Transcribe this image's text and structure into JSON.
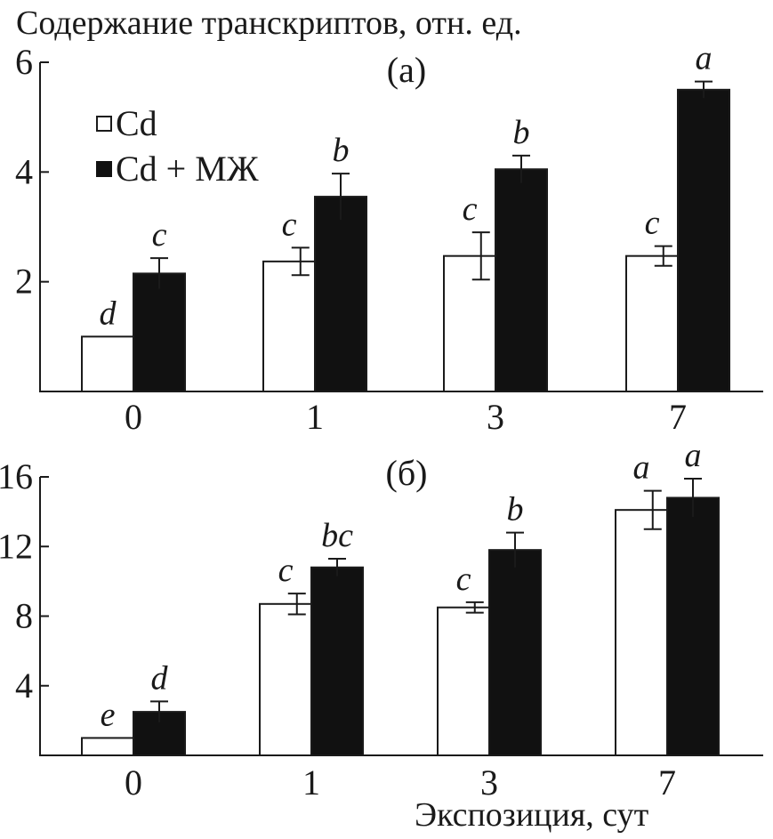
{
  "chart_data": {
    "type": "bar",
    "ylabel": "Содержание транскриптов, отн. ед.",
    "xlabel": "Экспозиция, сут",
    "categories": [
      "0",
      "1",
      "3",
      "7"
    ],
    "legend": [
      {
        "name": "Cd",
        "color": "#ffffff"
      },
      {
        "name": "Cd + МЖ",
        "color": "#111111"
      }
    ],
    "panels": [
      {
        "label": "(а)",
        "ylim": [
          0,
          6
        ],
        "yticks": [
          "2",
          "4",
          "6"
        ],
        "series": [
          {
            "name": "Cd",
            "values": [
              1.0,
              2.37,
              2.47,
              2.47
            ],
            "errors": [
              0.0,
              0.25,
              0.43,
              0.18
            ],
            "letters": [
              "d",
              "c",
              "c",
              "c"
            ]
          },
          {
            "name": "Cd + МЖ",
            "values": [
              2.15,
              3.55,
              4.05,
              5.5
            ],
            "errors": [
              0.28,
              0.42,
              0.25,
              0.15
            ],
            "letters": [
              "c",
              "b",
              "b",
              "a"
            ]
          }
        ]
      },
      {
        "label": "(б)",
        "ylim": [
          0,
          16
        ],
        "yticks": [
          "4",
          "8",
          "12",
          "16"
        ],
        "series": [
          {
            "name": "Cd",
            "values": [
              1.0,
              8.7,
              8.5,
              14.1
            ],
            "errors": [
              0.0,
              0.6,
              0.3,
              1.1
            ],
            "letters": [
              "e",
              "c",
              "c",
              "a"
            ]
          },
          {
            "name": "Cd + МЖ",
            "values": [
              2.5,
              10.8,
              11.8,
              14.8
            ],
            "errors": [
              0.6,
              0.5,
              1.0,
              1.1
            ],
            "letters": [
              "d",
              "bc",
              "b",
              "a"
            ]
          }
        ]
      }
    ]
  }
}
